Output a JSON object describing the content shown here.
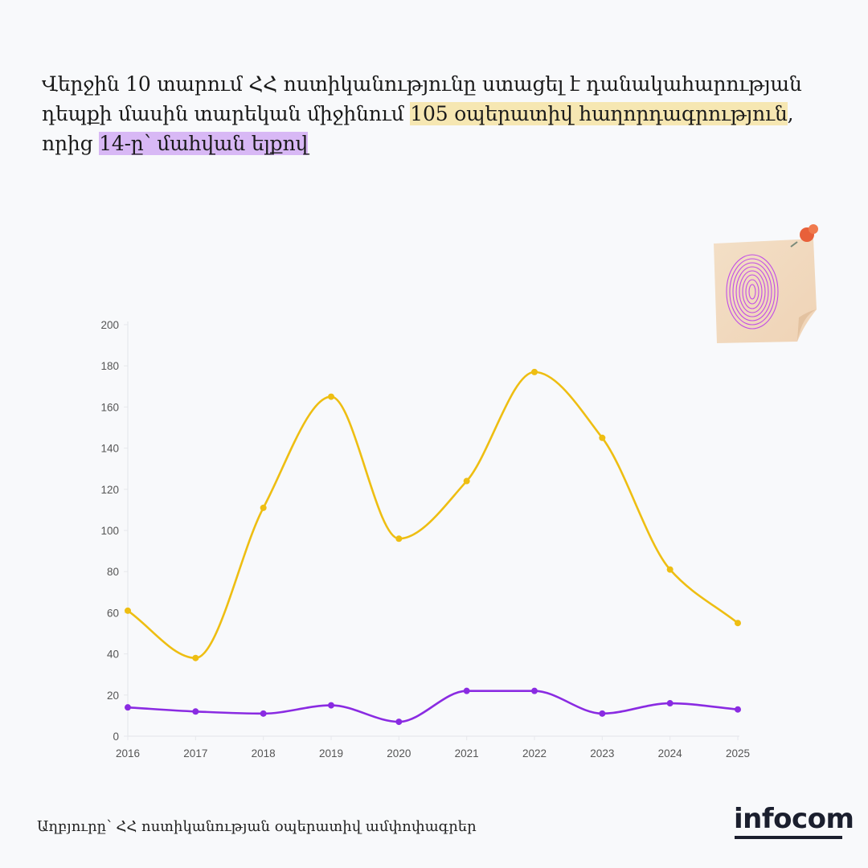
{
  "headline": {
    "part1": "Վերջին 10 տարում ՀՀ ոստիկանությունը ստացել է  դանակահարության դեպքի մասին տարեկան միջինում ",
    "highlight_yellow": "105 օպերատիվ հաղորդագրություն",
    "part2": ", որից ",
    "highlight_purple": "14-ը՝ մահվան ելքով"
  },
  "illustration": {
    "icon": "fingerprint-sticky-note-icon"
  },
  "source": "Աղբյուրը՝ ՀՀ ոստիկանության օպերատիվ ամփոփագրեր",
  "logo": {
    "text": "infocom"
  },
  "colors": {
    "yellow_series": "#eebe12",
    "purple_series": "#8a2be2",
    "yellow_highlight": "#f6e7b2",
    "purple_highlight": "#d8b8f5"
  },
  "chart_data": {
    "type": "line",
    "title": "",
    "xlabel": "",
    "ylabel": "",
    "categories": [
      "2016",
      "2017",
      "2018",
      "2019",
      "2020",
      "2021",
      "2022",
      "2023",
      "2024",
      "2025"
    ],
    "ylim": [
      0,
      200
    ],
    "yticks": [
      "0",
      "20",
      "40",
      "60",
      "80",
      "100",
      "120",
      "140",
      "160",
      "180",
      "200"
    ],
    "grid": false,
    "smooth": true,
    "series": [
      {
        "name": "operative reports",
        "color": "#eebe12",
        "values": [
          61,
          38,
          111,
          165,
          96,
          124,
          177,
          145,
          81,
          55
        ]
      },
      {
        "name": "fatal outcome",
        "color": "#8a2be2",
        "values": [
          14,
          12,
          11,
          15,
          7,
          22,
          22,
          11,
          16,
          13
        ]
      }
    ]
  }
}
